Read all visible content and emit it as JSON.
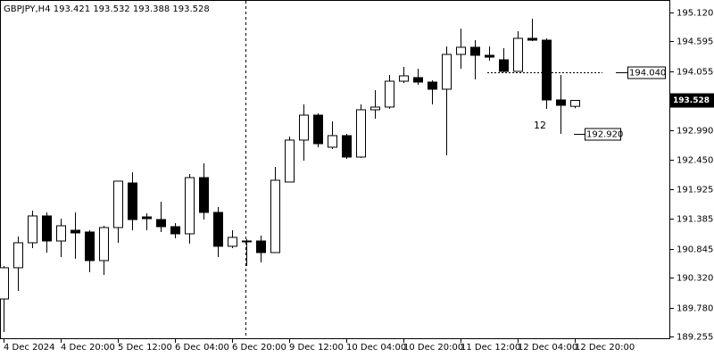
{
  "chart_data": {
    "type": "candlestick",
    "symbol": "GBPJPY,H4",
    "categories": [
      "4 Dec 2024",
      null,
      null,
      null,
      "4 Dec 20:00",
      null,
      null,
      null,
      "5 Dec 12:00",
      null,
      null,
      null,
      "6 Dec 04:00",
      null,
      null,
      null,
      "6 Dec 20:00",
      null,
      null,
      null,
      "9 Dec 12:00",
      null,
      null,
      null,
      "10 Dec 04:00",
      null,
      null,
      null,
      "10 Dec 20:00",
      null,
      null,
      null,
      "11 Dec 12:00",
      null,
      null,
      null,
      "12 Dec 04:00",
      null,
      null,
      null,
      "12 Dec 20:00"
    ],
    "open": [
      189.934,
      190.5,
      190.952,
      191.437,
      190.984,
      191.178,
      191.146,
      190.629,
      191.227,
      192.034,
      191.42,
      191.372,
      191.243,
      191.114,
      192.131,
      191.501,
      190.888,
      190.984,
      190.984,
      190.774,
      192.051,
      192.81,
      193.262,
      192.681,
      192.891,
      192.503,
      193.359,
      193.408,
      193.876,
      193.941,
      193.86,
      193.731,
      194.361,
      194.49,
      194.345,
      194.264,
      194.054,
      194.652,
      194.619,
      193.537,
      193.421
    ],
    "high": [
      190.532,
      191.065,
      191.534,
      191.501,
      191.388,
      191.501,
      191.178,
      191.259,
      192.067,
      192.228,
      191.485,
      191.695,
      191.307,
      192.196,
      192.39,
      191.598,
      191.178,
      191.017,
      191.081,
      192.325,
      192.874,
      193.456,
      193.295,
      193.149,
      192.923,
      193.456,
      193.715,
      193.989,
      194.135,
      194.102,
      193.892,
      194.506,
      194.829,
      194.619,
      194.506,
      194.474,
      194.781,
      195.007,
      194.652,
      193.989,
      193.532
    ],
    "low": [
      189.337,
      190.08,
      190.855,
      190.774,
      190.694,
      190.662,
      190.419,
      190.37,
      190.952,
      191.178,
      191.178,
      191.146,
      191.033,
      190.936,
      191.372,
      190.694,
      190.855,
      190.532,
      190.597,
      190.774,
      192.051,
      192.438,
      192.681,
      192.648,
      192.471,
      192.487,
      193.198,
      193.375,
      193.844,
      193.811,
      193.456,
      192.535,
      194.102,
      193.908,
      194.248,
      194.038,
      194.054,
      194.603,
      193.375,
      192.923,
      193.388
    ],
    "close": [
      190.5,
      190.952,
      191.437,
      190.984,
      191.259,
      191.13,
      190.629,
      191.227,
      192.067,
      191.372,
      191.388,
      191.243,
      191.114,
      192.131,
      191.501,
      190.888,
      191.049,
      190.968,
      190.774,
      192.083,
      192.81,
      193.262,
      192.745,
      192.891,
      192.503,
      193.359,
      193.408,
      193.876,
      193.973,
      193.86,
      193.731,
      194.361,
      194.49,
      194.345,
      194.312,
      194.054,
      194.652,
      194.619,
      193.537,
      193.44,
      193.528
    ],
    "up_color": "#ffffff",
    "down_color": "#000000",
    "ylim": [
      189.207,
      195.346
    ],
    "yticks": [
      {
        "value": 195.12,
        "label": "195.120"
      },
      194.595,
      194.055,
      {
        "value": 192.99,
        "label": "192.990"
      },
      {
        "value": 192.45,
        "label": "192.450"
      },
      191.925,
      191.385,
      190.845,
      {
        "value": 190.32,
        "label": "190.320"
      },
      {
        "value": 189.78,
        "label": "189.780"
      },
      189.255
    ],
    "hlines": [
      {
        "value": 194.04,
        "label": "194.040"
      },
      {
        "value": 192.92,
        "label": "192.920"
      }
    ],
    "annotations": [
      {
        "text": "12"
      }
    ]
  }
}
